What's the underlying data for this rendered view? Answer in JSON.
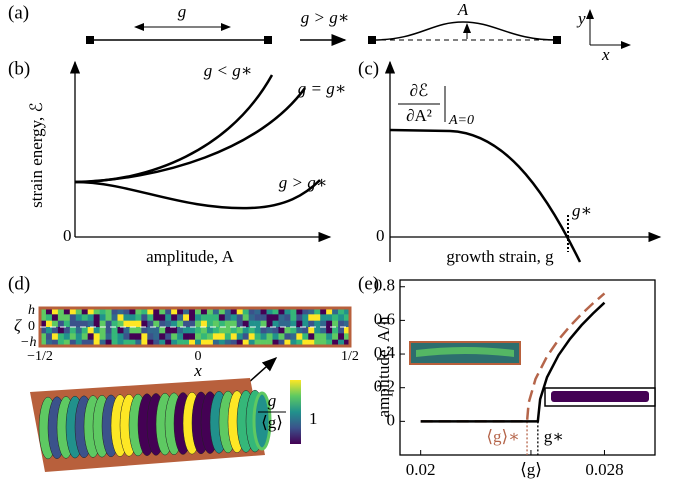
{
  "panels": {
    "a": {
      "label": "(a)",
      "rod_length": "g",
      "transition": "g > g∗",
      "amplitude": "A",
      "axis_y": "y",
      "axis_x": "x"
    },
    "b": {
      "label": "(b)",
      "ylabel": "strain energy, ℰ",
      "xlabel": "amplitude, A",
      "origin": "0",
      "curves": [
        "g < g∗",
        "g = g∗",
        "g > g∗"
      ]
    },
    "c": {
      "label": "(c)",
      "xlabel": "growth strain, g",
      "origin": "0",
      "marker": "g∗",
      "derivative": {
        "numerator": "∂ℰ",
        "denominator": "∂A²",
        "evaluated_at": "A=0"
      }
    },
    "d": {
      "label": "(d)",
      "zeta": "ζ",
      "zeta_ticks": [
        "h",
        "0",
        "−h"
      ],
      "x_ticks": [
        "−1/2",
        "0",
        "1/2"
      ],
      "xlabel": "x",
      "colorbar_numerator": "g",
      "colorbar_denominator": "⟨g⟩",
      "colorbar_tick": "1"
    },
    "e": {
      "label": "(e)"
    }
  },
  "chart_data": {
    "type": "line",
    "ylabel": "amplitude, A/h",
    "xlim": [
      0.0191,
      0.0302
    ],
    "ylim": [
      -0.2,
      0.84
    ],
    "xticks": [
      0.02,
      {
        "value": 0.0248,
        "label": "⟨g⟩"
      },
      0.028
    ],
    "yticks": [
      0,
      0.2,
      0.4,
      0.6,
      0.8
    ],
    "markers": [
      {
        "x": 0.02463,
        "label": "⟨g⟩∗",
        "color": "#b5654a"
      },
      {
        "x": 0.0251,
        "label": "g∗",
        "color": "#000000"
      }
    ],
    "series": [
      {
        "color": "#000000",
        "linestyle": "solid",
        "x": [
          0.02,
          0.0251,
          0.0252,
          0.0255,
          0.026,
          0.0265,
          0.027,
          0.0275,
          0.028
        ],
        "values": [
          0,
          0,
          0.131,
          0.262,
          0.393,
          0.49,
          0.571,
          0.641,
          0.705
        ]
      },
      {
        "color": "#b5654a",
        "linestyle": "dashed",
        "x": [
          0.02,
          0.02463,
          0.0247,
          0.025,
          0.0255,
          0.026,
          0.0265,
          0.027,
          0.0275,
          0.028
        ],
        "values": [
          0,
          0,
          0.11,
          0.252,
          0.386,
          0.485,
          0.566,
          0.637,
          0.701,
          0.76
        ]
      }
    ]
  }
}
